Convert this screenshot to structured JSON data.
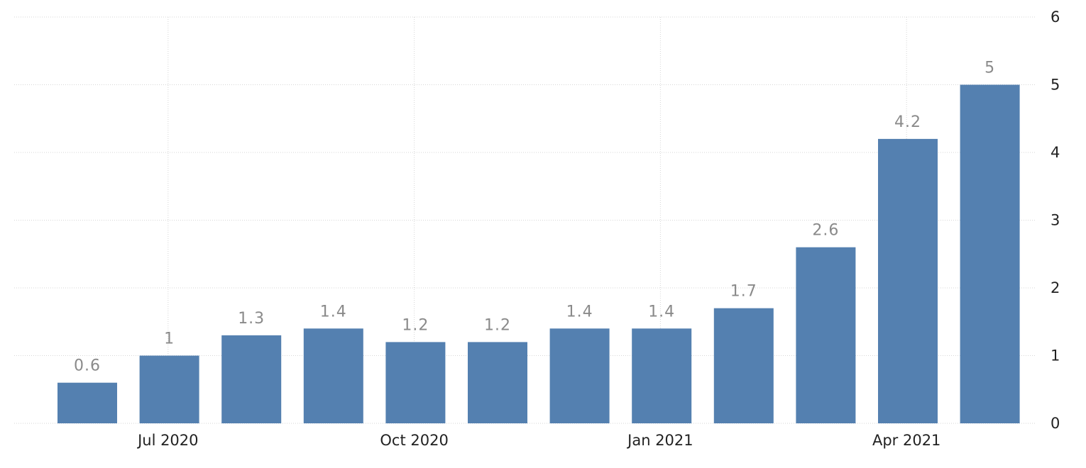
{
  "chart_data": {
    "type": "bar",
    "title": "",
    "xlabel": "",
    "ylabel": "",
    "x": [
      "2020-06",
      "2020-07",
      "2020-08",
      "2020-09",
      "2020-10",
      "2020-11",
      "2020-12",
      "2021-01",
      "2021-02",
      "2021-03",
      "2021-04",
      "2021-05"
    ],
    "values": [
      0.6,
      1,
      1.3,
      1.4,
      1.2,
      1.2,
      1.4,
      1.4,
      1.7,
      2.6,
      4.2,
      5
    ],
    "value_labels": [
      "0.6",
      "1",
      "1.3",
      "1.4",
      "1.2",
      "1.2",
      "1.4",
      "1.4",
      "1.7",
      "2.6",
      "4.2",
      "5"
    ],
    "ylim": [
      0,
      6
    ],
    "y_ticks": [
      "0",
      "1",
      "2",
      "3",
      "4",
      "5",
      "6"
    ],
    "x_tick_labels": [
      "Jul 2020",
      "Oct 2020",
      "Jan 2021",
      "Apr 2021"
    ],
    "y_axis_position": "right",
    "grid": true,
    "legend": "none",
    "colors": {
      "bar": "#5480b0",
      "data_label": "#8a8a8a",
      "tick_label": "#222222",
      "grid": "#d6d6d6"
    }
  }
}
